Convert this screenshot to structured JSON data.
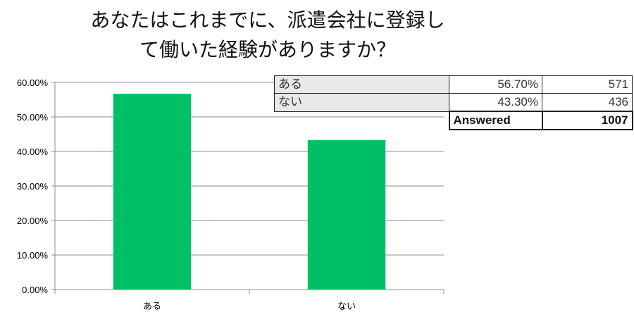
{
  "title": "あなたはこれまでに、派遣会社に登録し\nて働いた経験がありますか？",
  "chart_data": {
    "type": "bar",
    "categories": [
      "ある",
      "ない"
    ],
    "values": [
      56.7,
      43.3
    ],
    "y_tick_labels": [
      "0.00%",
      "10.00%",
      "20.00%",
      "30.00%",
      "40.00%",
      "50.00%",
      "60.00%"
    ],
    "ylim": [
      0,
      60
    ],
    "grid": true,
    "bar_color": "#00c065"
  },
  "table": {
    "rows": [
      {
        "label": "ある",
        "percent": "56.70%",
        "count": "571"
      },
      {
        "label": "ない",
        "percent": "43.30%",
        "count": "436"
      }
    ],
    "answered_label": "Answered",
    "answered_count": "1007"
  }
}
